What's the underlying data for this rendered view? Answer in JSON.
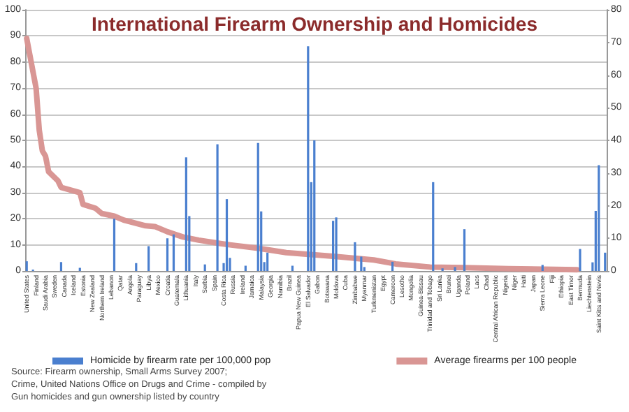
{
  "chart_data": {
    "type": "bar",
    "title": "International Firearm Ownership and Homicides",
    "categories": [
      "United States",
      null,
      null,
      "Finland",
      null,
      null,
      "Saudi Arabia",
      null,
      null,
      "Sweden",
      null,
      null,
      "Canada",
      null,
      null,
      "Iceland",
      null,
      null,
      "Estonia",
      null,
      null,
      "New Zealand",
      null,
      null,
      "Northern Ireland",
      null,
      null,
      "Lebanon",
      null,
      null,
      "Qatar",
      null,
      null,
      "Angola",
      null,
      null,
      "Paraguay",
      null,
      null,
      "Libya",
      null,
      null,
      "Mexico",
      null,
      null,
      "Croatia",
      null,
      null,
      "Guatemala",
      null,
      null,
      "Lithuania",
      null,
      null,
      "Italy",
      null,
      null,
      "Serbia",
      null,
      null,
      "Spain",
      null,
      null,
      "Costa Rica",
      null,
      null,
      "Russia",
      null,
      null,
      "Ireland",
      null,
      null,
      "Jamaica",
      null,
      null,
      "Malaysia",
      null,
      null,
      "Georgia",
      null,
      null,
      "Namibia",
      null,
      null,
      "Brazil",
      null,
      null,
      "Papua New Guinea",
      null,
      null,
      "El Salvador",
      null,
      null,
      "Gabon",
      null,
      null,
      "Botswana",
      null,
      null,
      "Moldova",
      null,
      null,
      "Cuba",
      null,
      null,
      "Zimbabwe",
      null,
      null,
      "Myanmar",
      null,
      null,
      "Turkmenistan",
      null,
      null,
      "Egypt",
      null,
      null,
      "Cameroon",
      null,
      null,
      "Lesotho",
      null,
      null,
      "Mongolia",
      null,
      null,
      "Guinea-Bissau",
      null,
      null,
      "Trinidad and Tobago",
      null,
      null,
      "Sri Lanka",
      null,
      null,
      "Brunei",
      null,
      null,
      "Uganda",
      null,
      null,
      "Poland",
      null,
      null,
      "Laos",
      null,
      null,
      "Chad",
      null,
      null,
      "Central African Republic",
      null,
      null,
      "Nigeria",
      null,
      null,
      "Niger",
      null,
      null,
      "Haiti",
      null,
      null,
      "Japan",
      null,
      null,
      "Sierra Leone",
      null,
      null,
      "Fiji",
      null,
      null,
      "Ethiopia",
      null,
      null,
      "East Timor",
      null,
      null,
      "Bermuda",
      null,
      null,
      "Liechtenstein",
      null,
      null,
      "Saint Kitts and Nevis",
      null,
      null
    ],
    "series": [
      {
        "name": "Homicide by firearm rate per 100,000 pop",
        "color": "#4a7fcf",
        "values": [
          3.7,
          null,
          0.5,
          null,
          null,
          null,
          null,
          null,
          null,
          null,
          null,
          3.4,
          null,
          null,
          null,
          null,
          null,
          1.2,
          null,
          null,
          null,
          null,
          null,
          null,
          null,
          null,
          null,
          null,
          20,
          null,
          null,
          null,
          null,
          null,
          null,
          3,
          null,
          null,
          null,
          9.5,
          null,
          null,
          null,
          null,
          null,
          12.5,
          null,
          14,
          null,
          null,
          null,
          43.5,
          21,
          null,
          null,
          null,
          null,
          2.5,
          null,
          null,
          null,
          48.5,
          null,
          3,
          27.5,
          5,
          null,
          null,
          null,
          null,
          2,
          null,
          null,
          null,
          49,
          22.8,
          3.4,
          7,
          null,
          null,
          null,
          null,
          null,
          null,
          null,
          2,
          null,
          null,
          null,
          null,
          86,
          34,
          50,
          null,
          null,
          null,
          null,
          null,
          19.2,
          20.5,
          null,
          null,
          null,
          null,
          null,
          11,
          null,
          5.5,
          1.5,
          null,
          null,
          null,
          null,
          null,
          null,
          null,
          null,
          3.5,
          null,
          null,
          null,
          null,
          null,
          null,
          null,
          null,
          null,
          null,
          null,
          null,
          34,
          null,
          null,
          1,
          null,
          null,
          null,
          1.5,
          null,
          null,
          16,
          null,
          null,
          null,
          null,
          null,
          null,
          null,
          null,
          null,
          null,
          null,
          null,
          null,
          null,
          null,
          null,
          null,
          null,
          null,
          null,
          null,
          null,
          null,
          null,
          2.3,
          null,
          null,
          null,
          null,
          null,
          null,
          null,
          null,
          null,
          null,
          null,
          8.4,
          null,
          null,
          null,
          3.3,
          23,
          40.5,
          null,
          7
        ]
      },
      {
        "name": "Average firearms per 100 people",
        "type": "line",
        "color": "#d99694",
        "values": [
          89,
          null,
          null,
          70,
          54,
          46,
          44,
          38,
          null,
          null,
          34.5,
          32,
          null,
          null,
          null,
          null,
          null,
          30,
          25.5,
          null,
          null,
          null,
          24,
          null,
          22,
          null,
          null,
          null,
          21,
          null,
          null,
          19.5,
          null,
          null,
          null,
          null,
          null,
          null,
          17.3,
          null,
          null,
          17,
          null,
          null,
          null,
          15,
          null,
          null,
          null,
          null,
          13,
          null,
          null,
          null,
          null,
          11.8,
          null,
          null,
          null,
          null,
          null,
          null,
          10.5,
          null,
          null,
          10,
          null,
          null,
          null,
          null,
          null,
          null,
          null,
          null,
          8.7,
          null,
          null,
          null,
          null,
          null,
          null,
          null,
          null,
          7,
          null,
          null,
          null,
          null,
          null,
          null,
          null,
          null,
          null,
          null,
          null,
          null,
          null,
          null,
          5.6,
          null,
          null,
          null,
          null,
          null,
          null,
          null,
          null,
          null,
          null,
          null,
          null,
          4.2,
          null,
          null,
          null,
          null,
          null,
          null,
          2.7,
          null,
          null,
          null,
          null,
          null,
          null,
          null,
          null,
          null,
          null,
          1.5,
          null,
          null,
          null,
          null,
          null,
          null,
          null,
          null,
          null,
          null,
          1.3,
          null,
          null,
          null,
          null,
          null,
          null,
          null,
          null,
          null,
          null,
          null,
          null,
          null,
          0.9,
          null,
          null,
          null,
          null,
          null,
          null,
          null,
          null,
          null,
          null,
          null,
          null,
          null,
          null,
          null,
          null,
          null,
          null,
          null,
          null,
          null,
          0.5,
          null,
          null,
          null,
          null,
          null,
          null,
          null,
          null,
          null
        ]
      }
    ],
    "ylim": [
      0,
      100
    ],
    "yticks": [
      0,
      10,
      20,
      30,
      40,
      50,
      60,
      70,
      80,
      90,
      100
    ],
    "y2lim": [
      0,
      80
    ],
    "y2ticks": [
      0,
      10,
      20,
      30,
      40,
      50,
      60,
      70,
      80
    ],
    "grid": "y",
    "legend": "bottom",
    "marker": "none",
    "annotations": [
      "Source: Firearm ownership, Small Arms Survey 2007;",
      "Crime, United Nations Office on Drugs and Crime - compiled by",
      "Gun homicides and gun ownership listed by country"
    ]
  }
}
